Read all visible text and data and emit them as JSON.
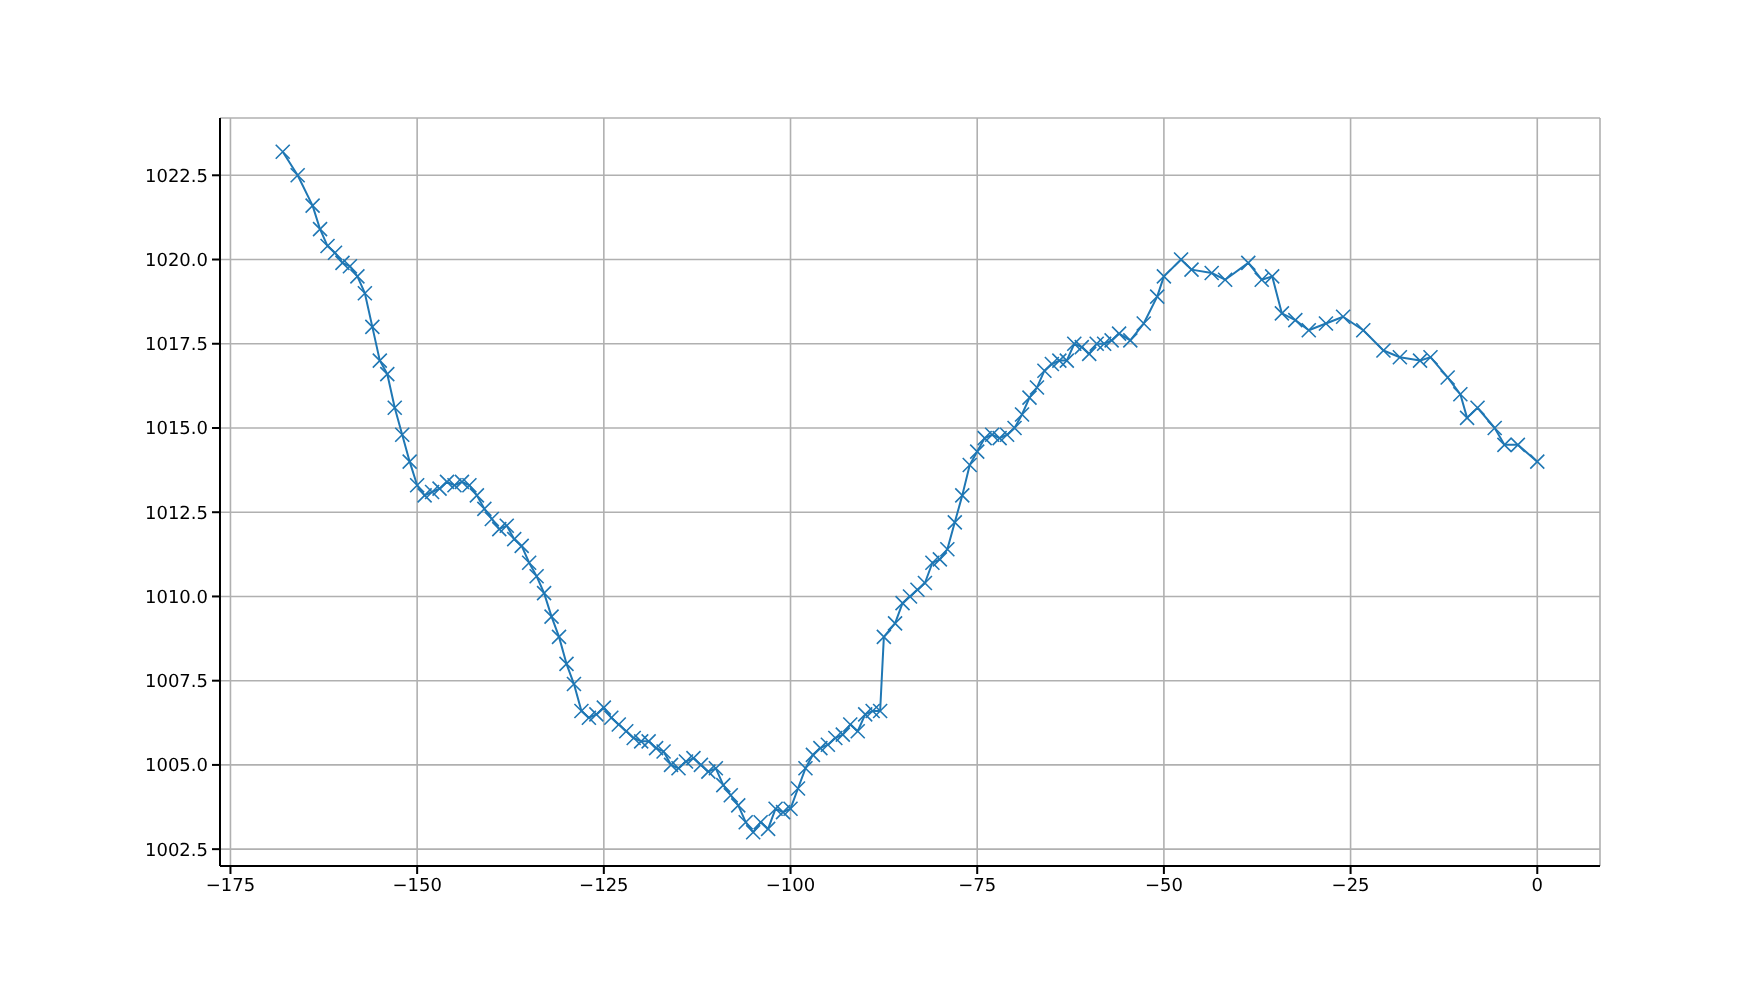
{
  "chart_data": {
    "type": "line",
    "marker": "cross",
    "grid": true,
    "xlim": [
      -176.4,
      8.4
    ],
    "xticks": [
      {
        "value": -175,
        "label": "−175"
      },
      {
        "value": -150,
        "label": "−150"
      },
      {
        "value": -125,
        "label": "−125"
      },
      {
        "value": -100,
        "label": "−100"
      },
      {
        "value": -75,
        "label": "−75"
      },
      {
        "value": -50,
        "label": "−50"
      },
      {
        "value": -25,
        "label": "−25"
      },
      0
    ],
    "ylim": [
      1002.0,
      1024.2
    ],
    "yticks": [
      1002.5,
      {
        "value": 1005,
        "label": "1005.0"
      },
      1007.5,
      {
        "value": 1010,
        "label": "1010.0"
      },
      1012.5,
      {
        "value": 1015,
        "label": "1015.0"
      },
      1017.5,
      {
        "value": 1020,
        "label": "1020.0"
      },
      1022.5
    ],
    "x": [
      -168,
      -166,
      -164,
      -163,
      -162,
      -161,
      -160,
      -159,
      -158,
      -157,
      -156,
      -155,
      -154,
      -153,
      -152,
      -151,
      -150,
      -149,
      -148,
      -147,
      -146,
      -145,
      -144,
      -143,
      -142,
      -141,
      -140,
      -139,
      -138,
      -137,
      -136,
      -135,
      -134,
      -133,
      -132,
      -131,
      -130,
      -129,
      -128,
      -127,
      -126,
      -125,
      -124,
      -123,
      -122,
      -121,
      -120,
      -119,
      -118,
      -117,
      -116,
      -115,
      -114,
      -113,
      -112,
      -111,
      -110,
      -109,
      -108,
      -107,
      -106,
      -105,
      -104,
      -103,
      -102,
      -101,
      -100,
      -99,
      -98,
      -97,
      -96,
      -95,
      -94,
      -93,
      -92,
      -91,
      -90,
      -89,
      -88,
      -87.5,
      -86,
      -85,
      -84,
      -83,
      -82,
      -81,
      -80,
      -79,
      -78,
      -77,
      -76,
      -75,
      -74,
      -73,
      -72,
      -71,
      -70,
      -69,
      -68,
      -67,
      -66,
      -65,
      -64,
      -63,
      -62,
      -61,
      -60,
      -59,
      -58,
      -57,
      -56,
      -54.5,
      -52.7,
      -50.9,
      -50,
      -47.7,
      -46.3,
      -43.6,
      -41.8,
      -38.7,
      -36.9,
      -35.5,
      -34.2,
      -32.4,
      -30.6,
      -28.3,
      -26,
      -23.3,
      -20.6,
      -18.4,
      -15.7,
      -14.3,
      -12,
      -10.3,
      -9.4,
      -8,
      -5.7,
      -4.4,
      -2.6,
      0
    ],
    "series": [
      {
        "color": "#1f77b4",
        "values": [
          1023.2,
          1022.5,
          1021.6,
          1020.9,
          1020.4,
          1020.2,
          1019.9,
          1019.8,
          1019.5,
          1019.0,
          1018.0,
          1017.0,
          1016.6,
          1015.6,
          1014.8,
          1014.0,
          1013.3,
          1013.0,
          1013.1,
          1013.2,
          1013.4,
          1013.3,
          1013.4,
          1013.3,
          1013.0,
          1012.6,
          1012.3,
          1012.0,
          1012.1,
          1011.7,
          1011.5,
          1011.0,
          1010.6,
          1010.1,
          1009.4,
          1008.8,
          1008.0,
          1007.4,
          1006.6,
          1006.4,
          1006.5,
          1006.7,
          1006.4,
          1006.2,
          1006.0,
          1005.8,
          1005.7,
          1005.7,
          1005.5,
          1005.4,
          1005.0,
          1004.9,
          1005.1,
          1005.2,
          1005.0,
          1004.8,
          1004.9,
          1004.4,
          1004.1,
          1003.8,
          1003.3,
          1003.0,
          1003.3,
          1003.1,
          1003.7,
          1003.6,
          1003.7,
          1004.3,
          1004.9,
          1005.3,
          1005.5,
          1005.6,
          1005.8,
          1005.9,
          1006.2,
          1006.0,
          1006.5,
          1006.6,
          1006.6,
          1008.8,
          1009.2,
          1009.8,
          1010.0,
          1010.2,
          1010.4,
          1011.0,
          1011.1,
          1011.4,
          1012.2,
          1013.0,
          1013.9,
          1014.3,
          1014.7,
          1014.8,
          1014.7,
          1014.8,
          1015.0,
          1015.4,
          1015.9,
          1016.2,
          1016.7,
          1016.9,
          1017.0,
          1017.0,
          1017.5,
          1017.4,
          1017.2,
          1017.5,
          1017.5,
          1017.6,
          1017.8,
          1017.6,
          1018.1,
          1018.9,
          1019.5,
          1020.0,
          1019.7,
          1019.6,
          1019.4,
          1019.9,
          1019.4,
          1019.5,
          1018.4,
          1018.2,
          1017.9,
          1018.1,
          1018.3,
          1017.9,
          1017.3,
          1017.1,
          1017.0,
          1017.1,
          1016.5,
          1016.0,
          1015.3,
          1015.6,
          1015.0,
          1014.5,
          1014.5,
          1014.0
        ]
      }
    ]
  }
}
